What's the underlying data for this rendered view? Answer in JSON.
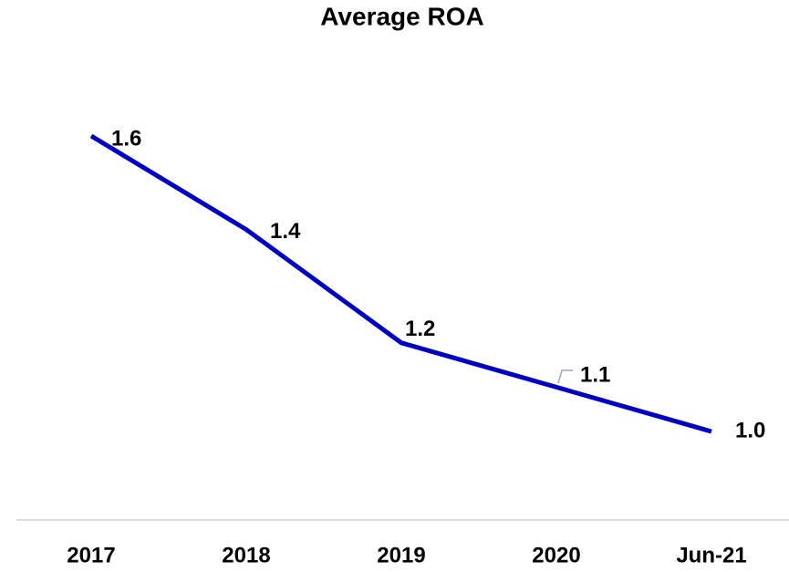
{
  "chart_data": {
    "type": "line",
    "title": "Average ROA",
    "categories": [
      "2017",
      "2018",
      "2019",
      "2020",
      "Jun-21"
    ],
    "values": [
      1.6,
      1.41,
      1.18,
      1.09,
      1.0
    ],
    "value_labels": [
      "1.6",
      "1.4",
      "1.2",
      "1.1",
      "1.0"
    ],
    "color": "#0000c0",
    "ylim": [
      0.8,
      1.7
    ]
  }
}
